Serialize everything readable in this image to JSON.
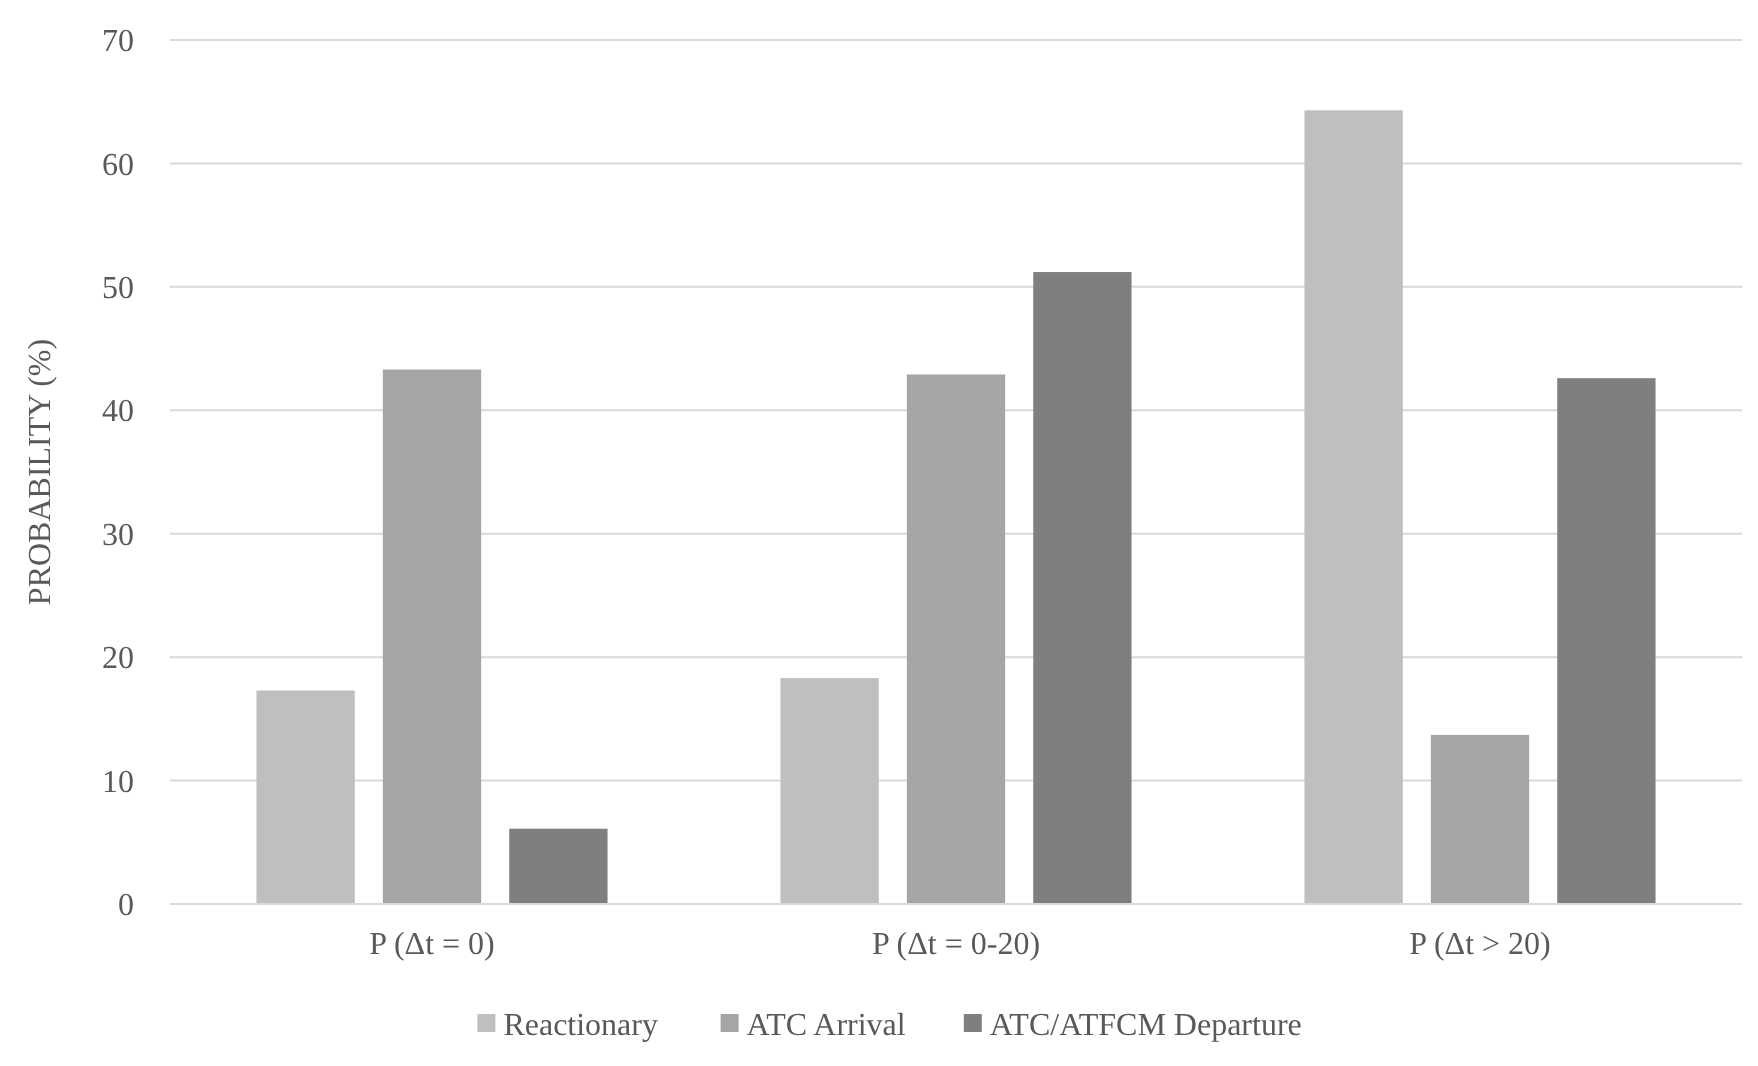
{
  "chart_data": {
    "type": "bar",
    "ylabel": "PROBABILITY (%)",
    "categories": [
      "P (Δt = 0)",
      "P (Δt = 0-20)",
      "P (Δt > 20)"
    ],
    "series": [
      {
        "name": "Reactionary",
        "color": "#bfbfbf",
        "values": [
          17.3,
          18.3,
          64.3
        ]
      },
      {
        "name": "ATC Arrival",
        "color": "#a5a5a5",
        "values": [
          43.3,
          42.9,
          13.7
        ]
      },
      {
        "name": "ATC/ATFCM Departure",
        "color": "#7f7f7f",
        "values": [
          6.1,
          51.2,
          42.6
        ]
      }
    ],
    "ylim": [
      0,
      70
    ],
    "yticks": [
      0,
      10,
      20,
      30,
      40,
      50,
      60,
      70
    ],
    "grid": "y",
    "legend": "bottom"
  }
}
